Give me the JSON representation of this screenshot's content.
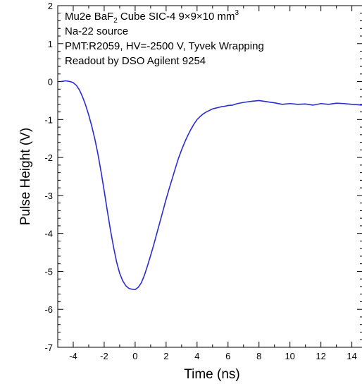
{
  "chart_data": {
    "type": "line",
    "title": "",
    "xlabel": "Time (ns)",
    "ylabel": "Pulse Height (V)",
    "xlim": [
      -5,
      14.7
    ],
    "ylim": [
      -7,
      2
    ],
    "x_ticks": [
      -4,
      -2,
      0,
      2,
      4,
      6,
      8,
      10,
      12,
      14
    ],
    "y_ticks": [
      2,
      1,
      0,
      -1,
      -2,
      -3,
      -4,
      -5,
      -6,
      -7
    ],
    "grid": false,
    "annotations": {
      "line1_prefix": "Mu2e BaF",
      "line1_sub": "2",
      "line1_mid": " Cube SIC-4  9×9×10 mm",
      "line1_sup": "3",
      "line2": "Na-22 source",
      "line3": "PMT:R2059, HV=-2500 V, Tyvek Wrapping",
      "line4": "Readout by DSO Agilent 9254"
    },
    "series": [
      {
        "color": "#2b2bd6",
        "x": [
          -4.8,
          -4.5,
          -4.2,
          -4.0,
          -3.8,
          -3.6,
          -3.4,
          -3.2,
          -3.0,
          -2.8,
          -2.6,
          -2.4,
          -2.2,
          -2.0,
          -1.8,
          -1.6,
          -1.4,
          -1.2,
          -1.0,
          -0.8,
          -0.6,
          -0.4,
          -0.2,
          0.0,
          0.2,
          0.4,
          0.6,
          0.8,
          1.0,
          1.2,
          1.4,
          1.6,
          1.8,
          2.0,
          2.2,
          2.4,
          2.6,
          2.8,
          3.0,
          3.2,
          3.4,
          3.6,
          3.8,
          4.0,
          4.2,
          4.4,
          4.6,
          4.8,
          5.0,
          5.2,
          5.4,
          5.6,
          5.8,
          6.0,
          6.3,
          6.6,
          7.0,
          7.5,
          8.0,
          8.5,
          9.0,
          9.5,
          10.0,
          10.5,
          11.0,
          11.5,
          12.0,
          12.5,
          13.0,
          13.5,
          14.0,
          14.7
        ],
        "y": [
          0.0,
          0.02,
          0.0,
          -0.03,
          -0.1,
          -0.22,
          -0.4,
          -0.62,
          -0.88,
          -1.18,
          -1.52,
          -1.92,
          -2.38,
          -2.88,
          -3.4,
          -3.9,
          -4.35,
          -4.75,
          -5.05,
          -5.25,
          -5.38,
          -5.45,
          -5.47,
          -5.48,
          -5.42,
          -5.3,
          -5.1,
          -4.85,
          -4.58,
          -4.3,
          -4.0,
          -3.7,
          -3.4,
          -3.1,
          -2.82,
          -2.55,
          -2.28,
          -2.02,
          -1.8,
          -1.6,
          -1.42,
          -1.26,
          -1.12,
          -1.0,
          -0.92,
          -0.85,
          -0.8,
          -0.76,
          -0.72,
          -0.7,
          -0.68,
          -0.66,
          -0.65,
          -0.63,
          -0.62,
          -0.58,
          -0.55,
          -0.52,
          -0.5,
          -0.53,
          -0.56,
          -0.6,
          -0.58,
          -0.6,
          -0.59,
          -0.62,
          -0.58,
          -0.6,
          -0.57,
          -0.58,
          -0.6,
          -0.62
        ]
      }
    ]
  }
}
